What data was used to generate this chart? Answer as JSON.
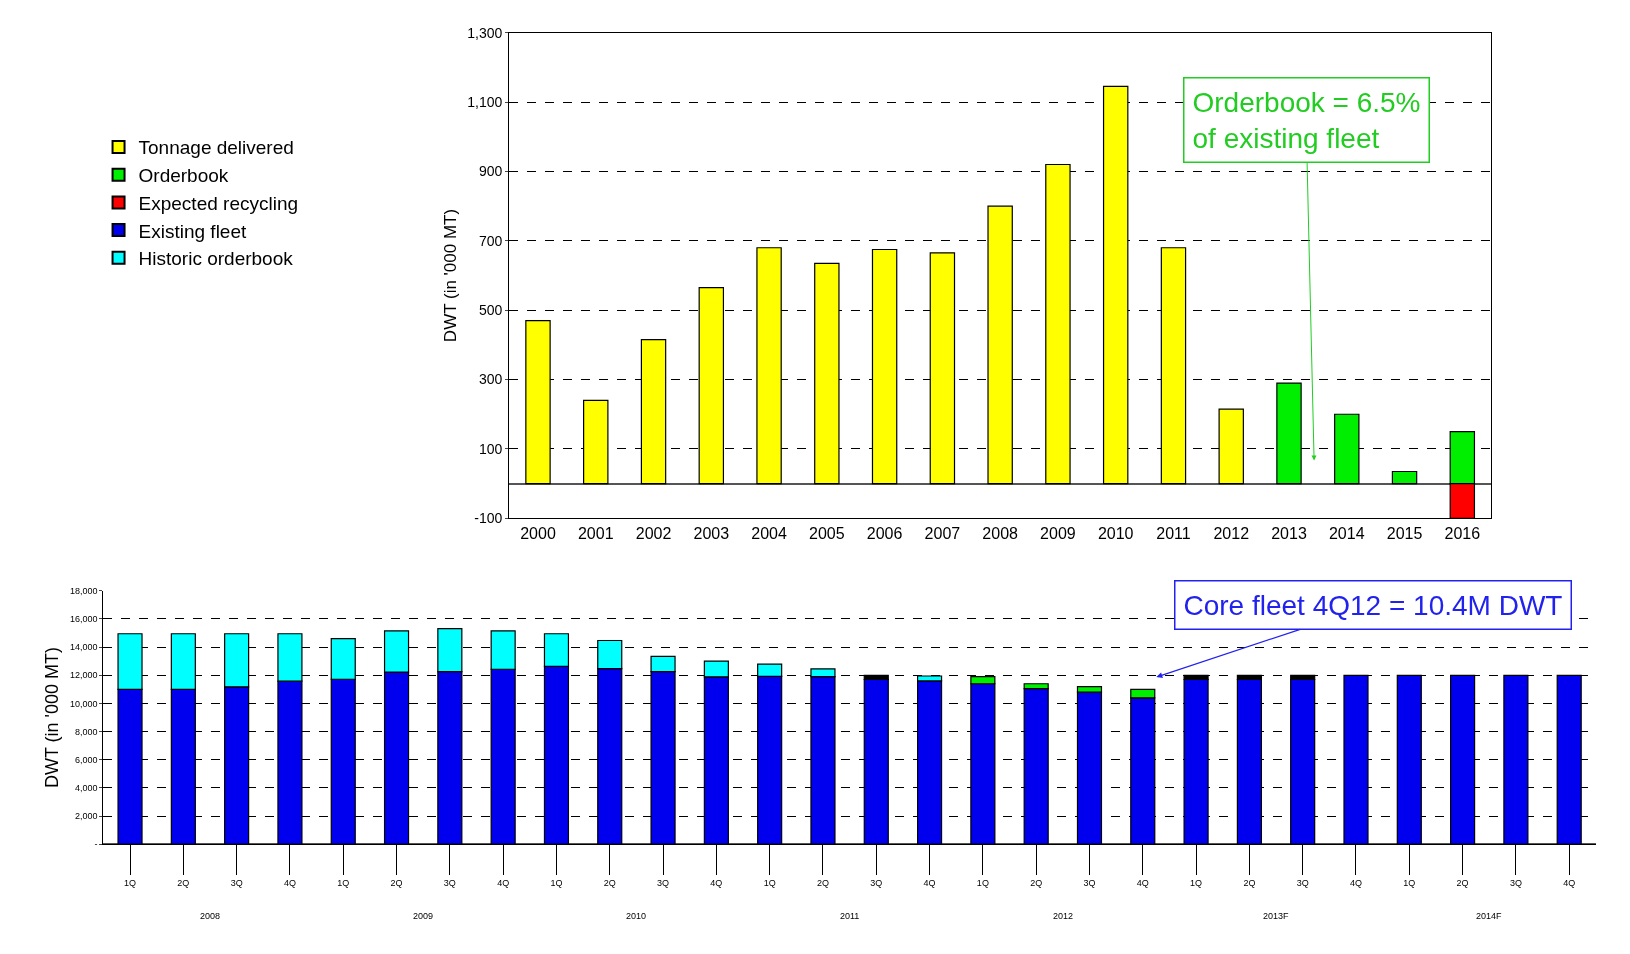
{
  "chart_data": [
    {
      "type": "bar",
      "stacked": true,
      "ylabel": "DWT (in '000 MT)",
      "categories": [
        "2000",
        "2001",
        "2002",
        "2003",
        "2004",
        "2005",
        "2006",
        "2007",
        "2008",
        "2009",
        "2010",
        "2011",
        "2012",
        "2013",
        "2014",
        "2015",
        "2016"
      ],
      "series": [
        {
          "name": "Tonnage delivered",
          "color": "#ffff00",
          "values": [
            470,
            240,
            415,
            565,
            680,
            635,
            675,
            665,
            800,
            920,
            1145,
            680,
            215,
            null,
            null,
            null,
            null
          ]
        },
        {
          "name": "Orderbook",
          "color": "#00ee00",
          "values": [
            null,
            null,
            null,
            null,
            null,
            null,
            null,
            null,
            null,
            null,
            null,
            null,
            null,
            290,
            200,
            35,
            150
          ]
        },
        {
          "name": "Expected recycling",
          "color": "#ff0000",
          "values": [
            null,
            null,
            null,
            null,
            null,
            null,
            null,
            null,
            null,
            null,
            null,
            null,
            null,
            null,
            null,
            null,
            -100
          ]
        }
      ],
      "ylim": [
        -100,
        1300
      ],
      "yticks": [
        -100,
        100,
        300,
        500,
        700,
        900,
        {
          "value": 1100,
          "label": "1,100"
        },
        {
          "value": 1300,
          "label": "1,300"
        }
      ],
      "grid": "y",
      "legend": "left",
      "annotations": [
        "Orderbook = 6.5%\nof existing fleet"
      ]
    },
    {
      "type": "bar",
      "stacked": true,
      "ylabel": "DWT (in '000 MT)",
      "categories": [
        "1Q",
        "2Q",
        "3Q",
        "4Q",
        "1Q",
        "2Q",
        "3Q",
        "4Q",
        "1Q",
        "2Q",
        "3Q",
        "4Q",
        "1Q",
        "2Q",
        "3Q",
        "4Q",
        "1Q",
        "2Q",
        "3Q",
        "4Q",
        "1Q",
        "2Q",
        "3Q",
        "4Q",
        "1Q",
        "2Q",
        "3Q",
        "4Q"
      ],
      "series": [
        {
          "name": "Existing fleet",
          "color": "#0000ee",
          "values": [
            11000,
            11000,
            11180,
            11580,
            11720,
            12230,
            12260,
            12430,
            12640,
            12470,
            12260,
            11890,
            11920,
            11900,
            11700,
            11600,
            11400,
            11050,
            10800,
            10400,
            11700,
            11700,
            11700,
            12000,
            12000,
            12000,
            12000,
            12000
          ]
        },
        {
          "name": "Historic orderbook",
          "color": "#00ffff",
          "values": [
            3950,
            3950,
            3770,
            3370,
            2880,
            2920,
            3060,
            2720,
            2310,
            2000,
            1090,
            1120,
            880,
            550,
            null,
            350,
            null,
            null,
            null,
            null,
            null,
            null,
            null,
            null,
            null,
            null,
            null,
            null
          ]
        },
        {
          "name": "Orderbook",
          "color": "#00ee00",
          "values": [
            null,
            null,
            null,
            null,
            null,
            null,
            null,
            null,
            null,
            null,
            null,
            null,
            null,
            null,
            null,
            null,
            500,
            350,
            400,
            600,
            null,
            null,
            null,
            null,
            null,
            null,
            null,
            null
          ]
        },
        {
          "color": "#000000",
          "values": [
            null,
            null,
            null,
            null,
            null,
            null,
            null,
            null,
            null,
            null,
            null,
            null,
            null,
            null,
            300,
            null,
            null,
            null,
            null,
            null,
            300,
            300,
            300,
            null,
            null,
            null,
            null,
            null
          ]
        }
      ],
      "ylim": [
        0,
        18000
      ],
      "yticks": [
        {
          "value": 0,
          "label": "-"
        },
        {
          "value": 2000,
          "label": "2,000"
        },
        {
          "value": 4000,
          "label": "4,000"
        },
        {
          "value": 6000,
          "label": "6,000"
        },
        {
          "value": 8000,
          "label": "8,000"
        },
        {
          "value": 10000,
          "label": "10,000"
        },
        {
          "value": 12000,
          "label": "12,000"
        },
        {
          "value": 14000,
          "label": "14,000"
        },
        {
          "value": 16000,
          "label": "16,000"
        },
        {
          "value": 18000,
          "label": "18,000"
        }
      ],
      "grid": "y",
      "legend": "left",
      "annotations": [
        "Core fleet 4Q12 = 10.4M DWT",
        "2008",
        "2009",
        "2010",
        "2011",
        "2012",
        "2013F",
        "2014F"
      ]
    }
  ]
}
